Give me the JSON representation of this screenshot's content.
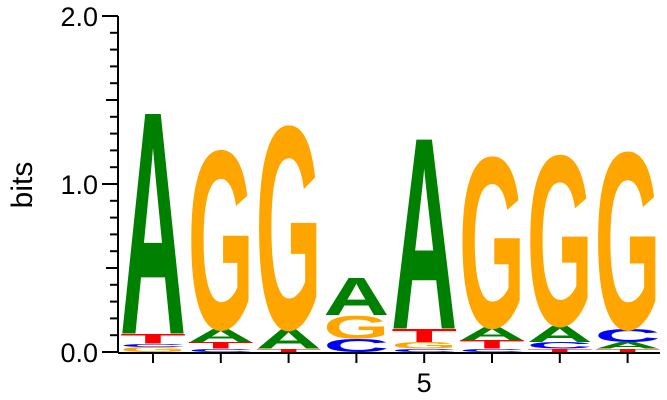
{
  "chart_data": {
    "type": "sequence-logo",
    "ylabel": "bits",
    "ylim": [
      0,
      2.0
    ],
    "yticks": [
      "0.0",
      "1.0",
      "2.0"
    ],
    "xtick_labels": [
      {
        "position": 5,
        "label": "5"
      }
    ],
    "colors": {
      "A": "#008000",
      "C": "#0000ff",
      "G": "#ffa500",
      "T": "#ff0000"
    },
    "positions": [
      {
        "index": 1,
        "stack": [
          {
            "letter": "G",
            "bits": 0.03
          },
          {
            "letter": "C",
            "bits": 0.02
          },
          {
            "letter": "T",
            "bits": 0.06
          },
          {
            "letter": "A",
            "bits": 1.36
          }
        ]
      },
      {
        "index": 2,
        "stack": [
          {
            "letter": "C",
            "bits": 0.02
          },
          {
            "letter": "T",
            "bits": 0.04
          },
          {
            "letter": "A",
            "bits": 0.08
          },
          {
            "letter": "G",
            "bits": 1.09
          }
        ]
      },
      {
        "index": 3,
        "stack": [
          {
            "letter": "T",
            "bits": 0.02
          },
          {
            "letter": "A",
            "bits": 0.12
          },
          {
            "letter": "G",
            "bits": 1.24
          }
        ]
      },
      {
        "index": 4,
        "stack": [
          {
            "letter": "C",
            "bits": 0.08
          },
          {
            "letter": "G",
            "bits": 0.14
          },
          {
            "letter": "A",
            "bits": 0.23
          }
        ]
      },
      {
        "index": 5,
        "stack": [
          {
            "letter": "C",
            "bits": 0.02
          },
          {
            "letter": "G",
            "bits": 0.04
          },
          {
            "letter": "T",
            "bits": 0.08
          },
          {
            "letter": "A",
            "bits": 1.17
          }
        ]
      },
      {
        "index": 6,
        "stack": [
          {
            "letter": "C",
            "bits": 0.02
          },
          {
            "letter": "T",
            "bits": 0.05
          },
          {
            "letter": "A",
            "bits": 0.08
          },
          {
            "letter": "G",
            "bits": 1.04
          }
        ]
      },
      {
        "index": 7,
        "stack": [
          {
            "letter": "T",
            "bits": 0.02
          },
          {
            "letter": "C",
            "bits": 0.04
          },
          {
            "letter": "A",
            "bits": 0.1
          },
          {
            "letter": "G",
            "bits": 1.04
          }
        ]
      },
      {
        "index": 8,
        "stack": [
          {
            "letter": "T",
            "bits": 0.02
          },
          {
            "letter": "A",
            "bits": 0.04
          },
          {
            "letter": "C",
            "bits": 0.08
          },
          {
            "letter": "G",
            "bits": 1.08
          }
        ]
      }
    ]
  }
}
